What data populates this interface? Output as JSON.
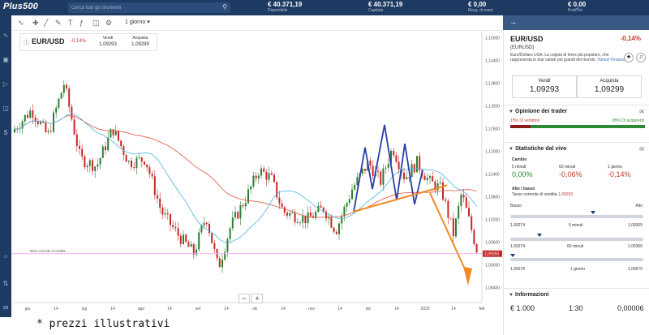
{
  "header": {
    "logo": "Plus500",
    "search_placeholder": "Cerca tutti gli strumenti",
    "stats": [
      {
        "value": "€ 40.371,19",
        "label": "Disponibile"
      },
      {
        "value": "€ 40.371,19",
        "label": "Capitale"
      },
      {
        "value": "€ 0,00",
        "label": "Marg. di mant."
      },
      {
        "value": "€ 0,00",
        "label": "Prof/Per"
      }
    ]
  },
  "toolbar": {
    "period": "1 giorno"
  },
  "instrument_box": {
    "symbol": "EUR/USD",
    "change": "-0,14%",
    "sell_label": "Vendi",
    "sell_price": "1,09293",
    "buy_label": "Acquista",
    "buy_price": "1,09299"
  },
  "chart_data": {
    "type": "candlestick",
    "x_tick_labels": [
      "giu",
      "14",
      "lug",
      "14",
      "ago",
      "14",
      "set",
      "14",
      "ott",
      "14",
      "nov",
      "14",
      "dic",
      "14",
      "2020",
      "14",
      "feb"
    ],
    "y_tick_labels": [
      "1,15000",
      "1,14400",
      "1,13800",
      "1,13200",
      "1,12600",
      "1,12000",
      "1,11400",
      "1,10800",
      "1,10200",
      "1,09600",
      "1,09000",
      "1,08400"
    ],
    "current_rate_label": "Tasso corrente di vendita",
    "current_rate": "1,09293",
    "ylim": [
      1.08,
      1.151
    ],
    "colors": {
      "up": "#2d7d32",
      "down": "#c62828",
      "ma_slow": "#e0523a",
      "ma_fast": "#4ab6e0",
      "pattern": "#2c3ea8",
      "arrow": "#f08a24",
      "rate_line": "#f3b0f0"
    }
  },
  "panel": {
    "symbol": "EUR/USD",
    "change": "-0,14%",
    "code": "(EURUSD)",
    "description": "Euro/Dollaro USA. La coppia di forex più popolare, che rappresenta le due valute più grandi del mondo.",
    "description_link": "Yahoo! Finance",
    "sell_label": "Vendi",
    "sell_price": "1,09293",
    "buy_label": "Acquista",
    "buy_price": "1,09299",
    "sentiment_title": "Opinione dei trader",
    "sentiment_sellers": "15% Di venditori",
    "sentiment_buyers": "85% Di acquirenti",
    "sentiment_buy_fraction": 0.85,
    "live_title": "Statistiche dal vivo",
    "change_label": "Cambio",
    "periods": [
      {
        "label": "5 minuti",
        "value": "0,00%"
      },
      {
        "label": "60 minuti",
        "value": "-0,06%"
      },
      {
        "label": "1 giorno",
        "value": "-0,14%"
      }
    ],
    "hilo_label": "Alto / basso",
    "hilo_sub": "Tasso corrente di vendita",
    "hilo_rate": "1,09293",
    "low_label": "Basso",
    "high_label": "Alto",
    "ranges": [
      {
        "low": "1,09274",
        "label": "5 minuti",
        "high": "1,09305",
        "position": 0.62
      },
      {
        "low": "1,09274",
        "label": "60 minuti",
        "high": "1,09366",
        "position": 0.22
      },
      {
        "low": "1,09278",
        "label": "1 giorno",
        "high": "1,09575",
        "position": 0.02
      }
    ],
    "info_title": "Informazioni",
    "info_values": [
      "€ 1.000",
      "1:30",
      "0,00006"
    ]
  },
  "footnote": "* prezzi illustrativi"
}
